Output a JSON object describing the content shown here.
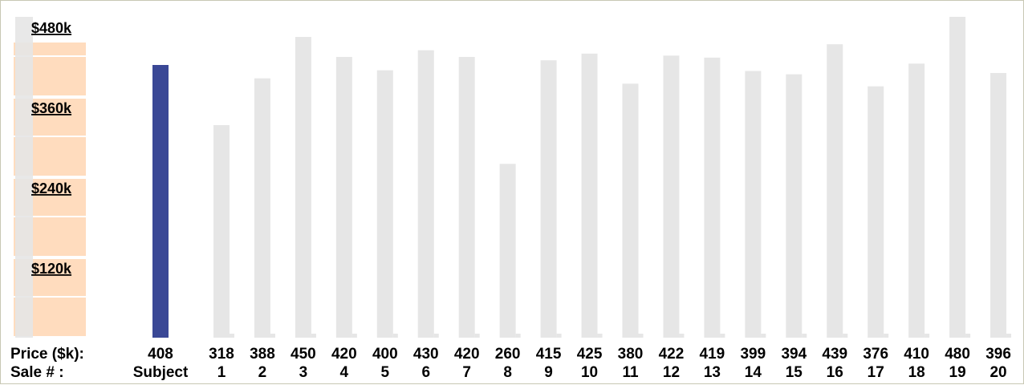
{
  "chart_data": {
    "type": "bar",
    "title": "",
    "xlabel": "",
    "ylabel": "",
    "ylim": [
      0,
      480
    ],
    "yticks": [
      120,
      240,
      360,
      480
    ],
    "ytick_labels": [
      "$120k",
      "$240k",
      "$360k",
      "$480k"
    ],
    "price_row_label": "Price ($k):",
    "sale_row_label": "Sale # :",
    "categories": [
      "Subject",
      "1",
      "2",
      "3",
      "4",
      "5",
      "6",
      "7",
      "8",
      "9",
      "10",
      "11",
      "12",
      "13",
      "14",
      "15",
      "16",
      "17",
      "18",
      "19",
      "20"
    ],
    "values": [
      408,
      318,
      388,
      450,
      420,
      400,
      430,
      420,
      260,
      415,
      425,
      380,
      422,
      419,
      399,
      394,
      439,
      376,
      410,
      480,
      396
    ],
    "highlight_index": 0,
    "colors": {
      "highlight": "#3a4896",
      "bar": "#e6e6e6",
      "band": "#ffdcbe",
      "scale_bar": "#e6e6e6",
      "frame": "#c8c8b4"
    }
  }
}
